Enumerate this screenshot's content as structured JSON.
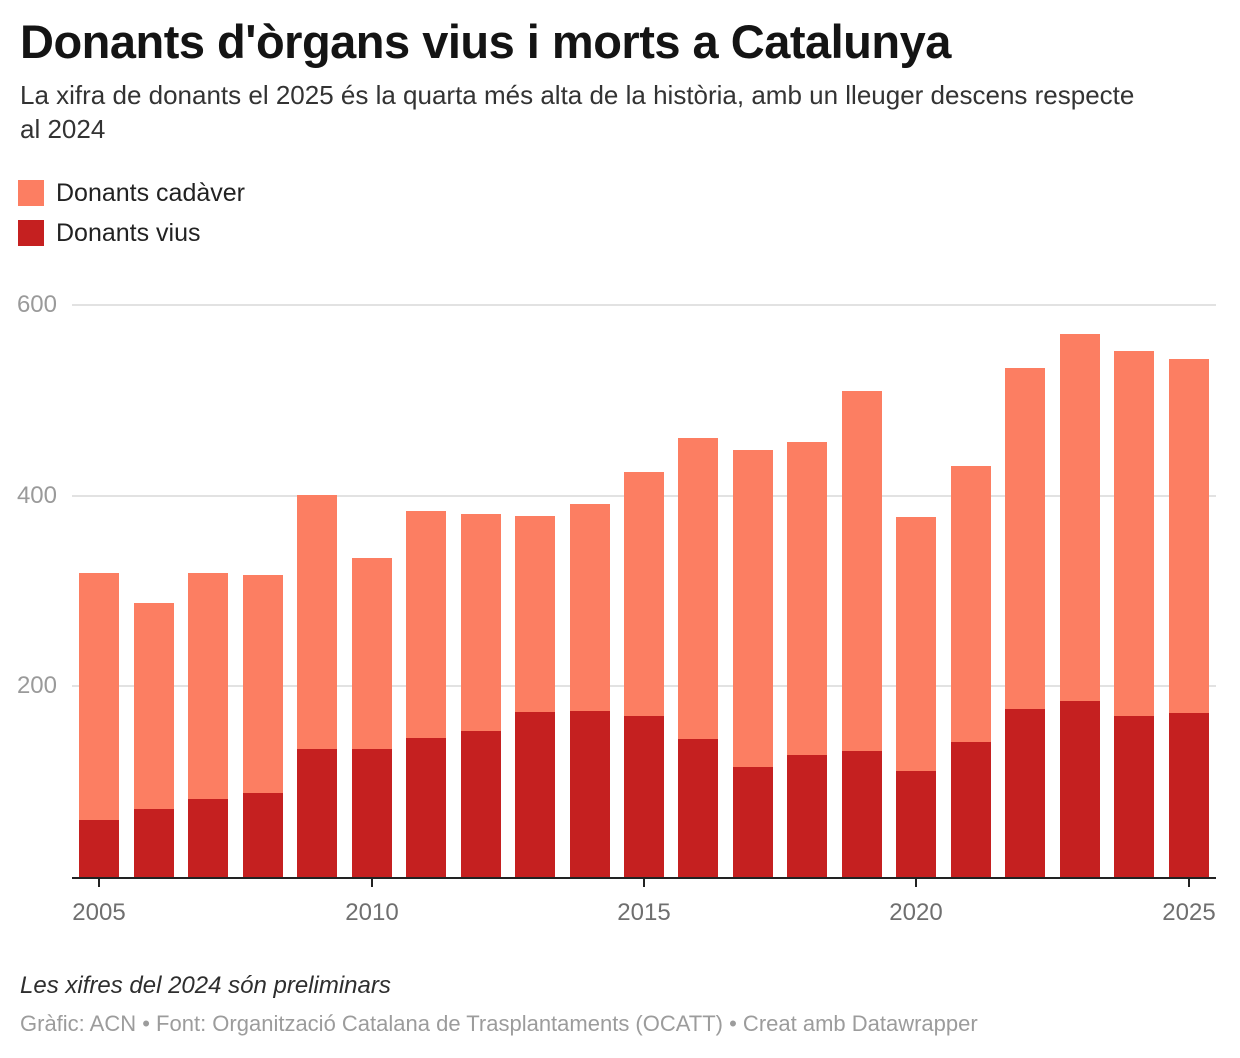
{
  "header": {
    "title": "Donants d'òrgans vius i morts a Catalunya",
    "subtitle": "La xifra de donants el 2025 és la quarta més alta de la història, amb un lleuger descens respecte\nal 2024"
  },
  "legend": {
    "items": [
      {
        "label": "Donants cadàver",
        "color": "#fc7e62"
      },
      {
        "label": "Donants vius",
        "color": "#c52020"
      }
    ]
  },
  "footer": {
    "note": "Les xifres del 2024 són preliminars",
    "credit": "Gràfic: ACN • Font: Organització Catalana de Trasplantaments (OCATT) • Creat amb Datawrapper"
  },
  "chart_data": {
    "type": "bar",
    "stacked": true,
    "title": "Donants d'òrgans vius i morts a Catalunya",
    "categories": [
      2005,
      2006,
      2007,
      2008,
      2009,
      2010,
      2011,
      2012,
      2013,
      2014,
      2015,
      2016,
      2017,
      2018,
      2019,
      2020,
      2021,
      2022,
      2023,
      2024,
      2025
    ],
    "series": [
      {
        "name": "Donants cadàver",
        "color": "#fc7e62",
        "values": [
          259,
          216,
          237,
          229,
          267,
          201,
          238,
          228,
          206,
          217,
          256,
          316,
          333,
          328,
          378,
          267,
          289,
          358,
          385,
          383,
          371
        ]
      },
      {
        "name": "Donants vius",
        "color": "#c52020",
        "values": [
          60,
          71,
          82,
          88,
          134,
          134,
          146,
          153,
          173,
          174,
          169,
          145,
          115,
          128,
          132,
          111,
          142,
          176,
          185,
          169,
          172
        ]
      }
    ],
    "totals": [
      319,
      287,
      319,
      317,
      401,
      335,
      384,
      381,
      379,
      391,
      425,
      461,
      448,
      456,
      510,
      378,
      431,
      534,
      570,
      552,
      543
    ],
    "xlabel": "",
    "ylabel": "",
    "ylim": [
      0,
      600
    ],
    "yticks": [
      200,
      400,
      600
    ],
    "xticks": [
      2005,
      2010,
      2015,
      2020,
      2025
    ],
    "grid": "horizontal",
    "legend_position": "top-left",
    "stack_order_bottom_to_top": [
      "Donants vius",
      "Donants cadàver"
    ]
  }
}
